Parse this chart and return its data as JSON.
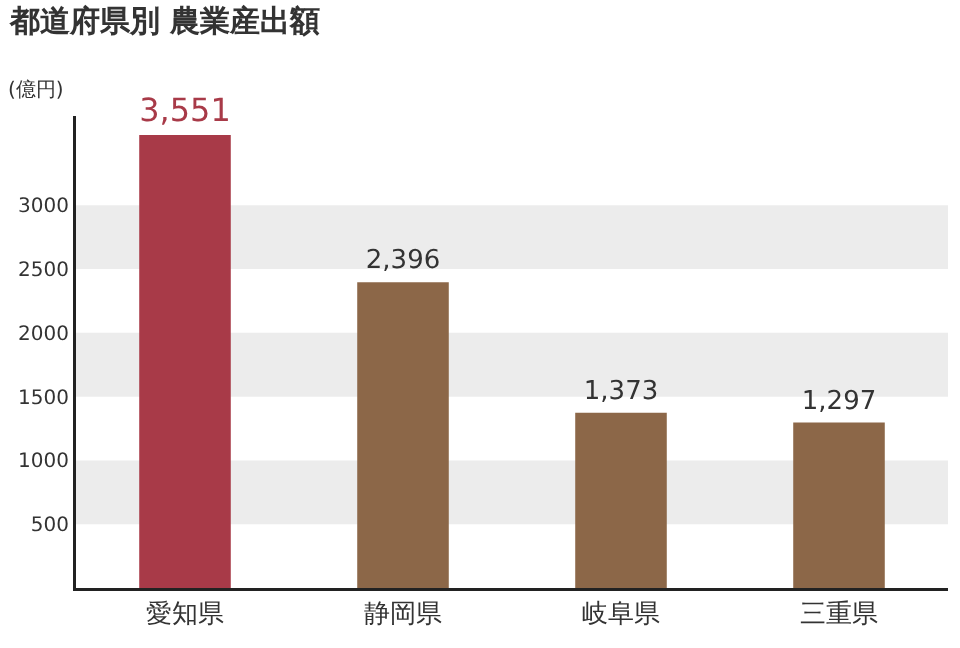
{
  "chart_data": {
    "type": "bar",
    "title": "都道府県別 農業産出額",
    "ylabel": "(億円)",
    "categories": [
      "愛知県",
      "静岡県",
      "岐阜県",
      "三重県"
    ],
    "values": [
      3551,
      2396,
      1373,
      1297
    ],
    "colors": [
      "#a83a48",
      "#8c6748",
      "#8c6748",
      "#8c6748"
    ],
    "value_labels": [
      "3,551",
      "2,396",
      "1,373",
      "1,297"
    ],
    "ylim": [
      0,
      3700
    ],
    "yticks": [
      500,
      1000,
      1500,
      2000,
      2500,
      3000
    ],
    "bands": [
      {
        "axis": "y",
        "from": 500,
        "to": 1000,
        "color": "#ececec"
      },
      {
        "axis": "y",
        "from": 1500,
        "to": 2000,
        "color": "#ececec"
      },
      {
        "axis": "y",
        "from": 2500,
        "to": 3000,
        "color": "#ececec"
      }
    ],
    "grid": false
  }
}
